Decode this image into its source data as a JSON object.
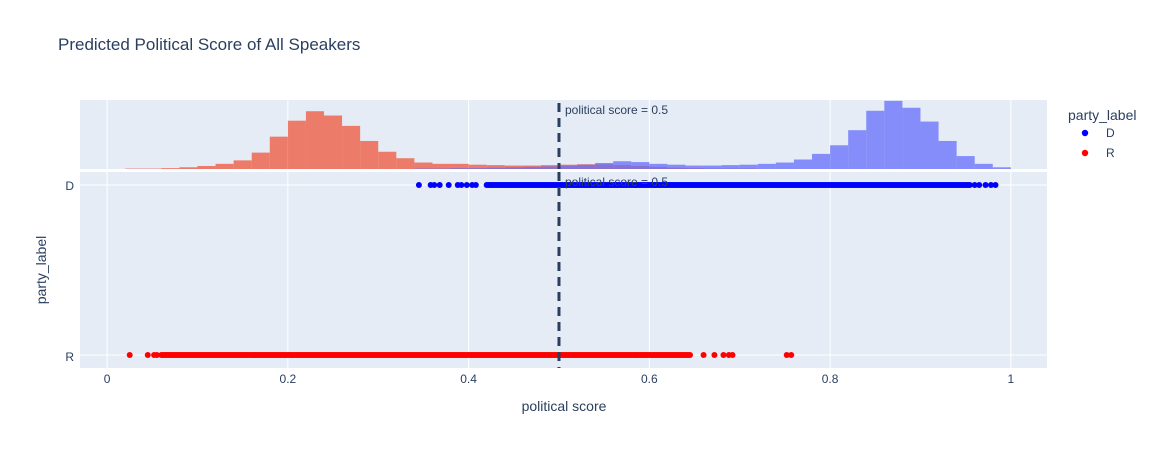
{
  "chart_data": {
    "type": "histogram+strip",
    "title": "Predicted Political Score of All Speakers",
    "xlabel": "political score",
    "ylabel": "party_label",
    "xlim": [
      -0.03,
      1.04
    ],
    "x_ticks": [
      0,
      0.2,
      0.4,
      0.6,
      0.8,
      1
    ],
    "x_tick_labels": [
      "0",
      "0.2",
      "0.4",
      "0.6",
      "0.8",
      "1"
    ],
    "y_categories": [
      "D",
      "R"
    ],
    "legend": {
      "title": "party_label",
      "placement": "top-right",
      "entries": [
        {
          "label": "D",
          "color": "#0000ff"
        },
        {
          "label": "R",
          "color": "#ff0000"
        }
      ]
    },
    "vline": {
      "x": 0.5,
      "label": "political score = 0.5",
      "color": "#2a3f5f",
      "dash": "dash"
    },
    "histogram": {
      "bin_width": 0.02,
      "bin_start": 0.02,
      "ymax": 160,
      "series": [
        {
          "name": "R",
          "color": "#ef553b",
          "values": [
            1,
            1,
            2,
            4,
            7,
            12,
            20,
            38,
            75,
            112,
            134,
            124,
            100,
            65,
            40,
            25,
            15,
            12,
            12,
            10,
            9,
            8,
            8,
            9,
            10,
            11,
            11,
            9,
            7,
            5,
            3,
            2,
            1,
            1,
            1,
            0,
            0,
            0,
            0,
            0,
            0,
            0,
            0,
            0,
            0,
            0,
            0,
            0,
            0
          ]
        },
        {
          "name": "D",
          "color": "#636efa",
          "values": [
            0,
            0,
            0,
            0,
            0,
            0,
            0,
            0,
            0,
            0,
            0,
            0,
            0,
            0,
            0,
            0,
            1,
            1,
            2,
            2,
            3,
            4,
            5,
            6,
            8,
            10,
            14,
            18,
            16,
            12,
            10,
            8,
            8,
            9,
            10,
            12,
            15,
            22,
            35,
            55,
            90,
            135,
            158,
            142,
            110,
            65,
            30,
            12,
            4
          ]
        }
      ]
    },
    "strip": {
      "D": {
        "color": "#0000ff",
        "isolated": [
          0.345,
          0.358,
          0.362,
          0.368,
          0.378,
          0.388,
          0.392,
          0.398,
          0.404,
          0.408
        ],
        "dense_range": [
          0.42,
          0.955
        ],
        "tail": [
          0.96,
          0.965,
          0.972,
          0.978,
          0.983
        ]
      },
      "R": {
        "color": "#ff0000",
        "isolated": [
          0.025,
          0.045,
          0.052,
          0.055
        ],
        "dense_range": [
          0.06,
          0.645
        ],
        "tail": [
          0.66,
          0.672,
          0.682,
          0.688,
          0.692,
          0.752,
          0.757
        ]
      }
    }
  }
}
